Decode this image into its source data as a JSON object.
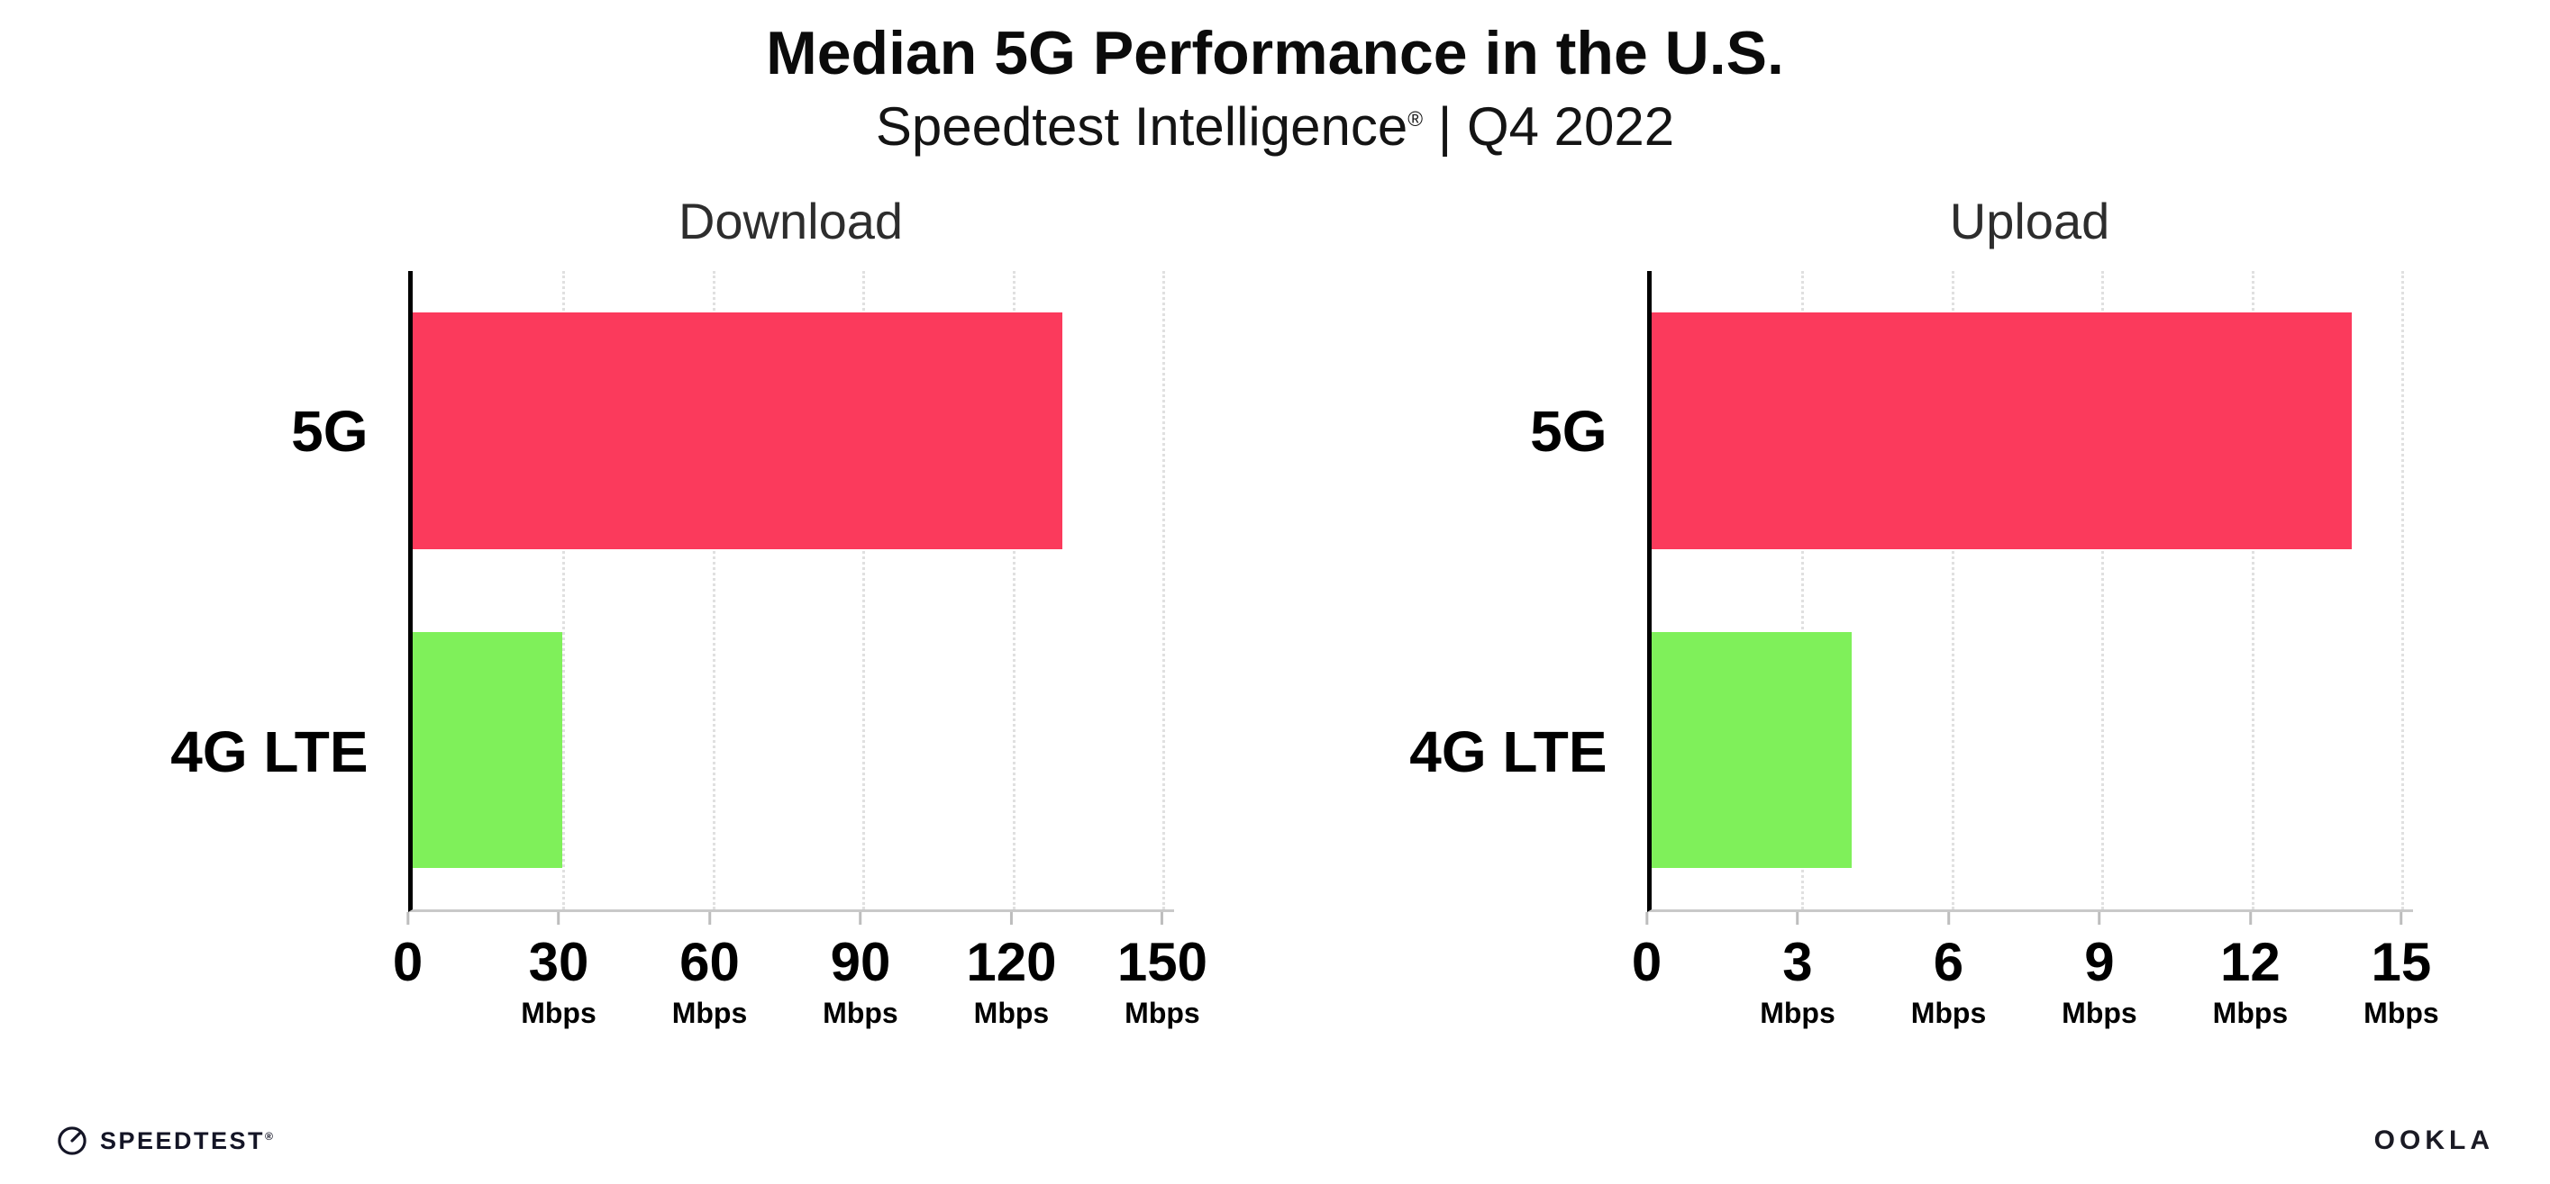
{
  "header": {
    "title": "Median 5G Performance in the U.S.",
    "subtitle_brand": "Speedtest Intelligence",
    "subtitle_mark": "®",
    "subtitle_rest": " | Q4 2022"
  },
  "chart_data": [
    {
      "type": "bar",
      "orientation": "horizontal",
      "title": "Download",
      "categories": [
        "5G",
        "4G LTE"
      ],
      "values": [
        130,
        30
      ],
      "value_unit": "Mbps",
      "xlim": [
        0,
        150
      ],
      "x_ticks": [
        0,
        30,
        60,
        90,
        120,
        150
      ],
      "tick_unit": "Mbps",
      "bar_colors": [
        "#fb3a5c",
        "#7ff05a"
      ],
      "grid": "vertical-dotted",
      "legend": "none"
    },
    {
      "type": "bar",
      "orientation": "horizontal",
      "title": "Upload",
      "categories": [
        "5G",
        "4G LTE"
      ],
      "values": [
        14,
        4
      ],
      "value_unit": "Mbps",
      "xlim": [
        0,
        15
      ],
      "x_ticks": [
        0,
        3,
        6,
        9,
        12,
        15
      ],
      "tick_unit": "Mbps",
      "bar_colors": [
        "#fb3a5c",
        "#7ff05a"
      ],
      "grid": "vertical-dotted",
      "legend": "none"
    }
  ],
  "footer": {
    "speedtest_label": "SPEEDTEST",
    "speedtest_mark": "®",
    "ookla_label": "OOKLA"
  }
}
